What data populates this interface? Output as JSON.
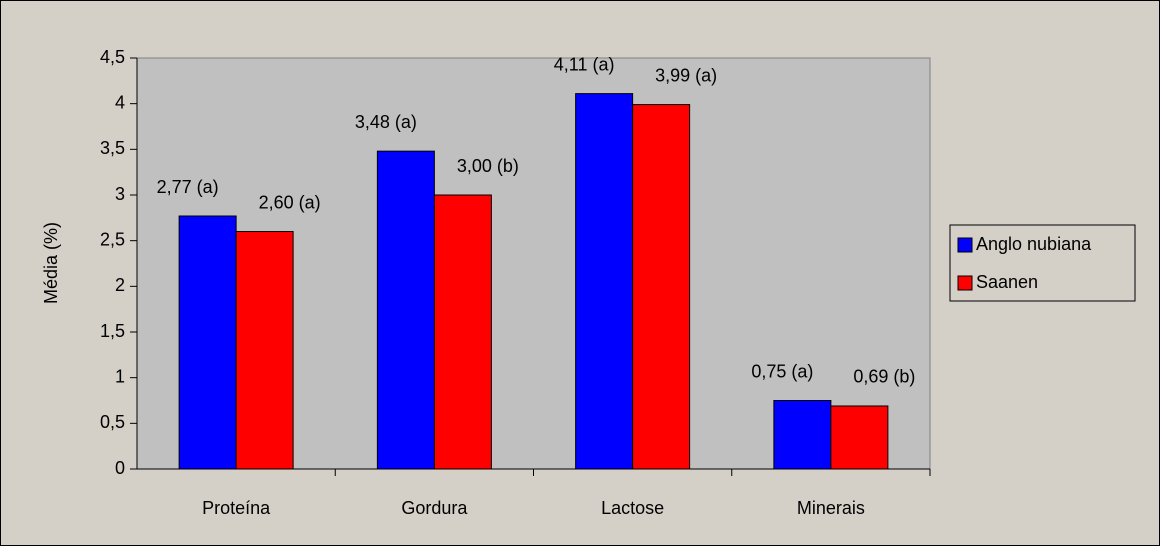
{
  "chart_data": {
    "type": "bar",
    "y_label": "Média (%)",
    "categories": [
      "Proteína",
      "Gordura",
      "Lactose",
      "Minerais"
    ],
    "series": [
      {
        "name": "Anglo nubiana",
        "color": "#0000ff",
        "values": [
          2.77,
          3.48,
          4.11,
          0.75
        ],
        "value_labels": [
          "2,77 (a)",
          "3,48 (a)",
          "4,11 (a)",
          "0,75 (a)"
        ]
      },
      {
        "name": "Saanen",
        "color": "#ff0000",
        "values": [
          2.6,
          3.0,
          3.99,
          0.69
        ],
        "value_labels": [
          "2,60 (a)",
          "3,00 (b)",
          "3,99 (a)",
          "0,69 (b)"
        ]
      }
    ],
    "ylim": [
      0,
      4.5
    ],
    "yticks": [
      0,
      {
        "value": 0.5,
        "label": "0,5"
      },
      1,
      {
        "value": 1.5,
        "label": "1,5"
      },
      2,
      {
        "value": 2.5,
        "label": "2,5"
      },
      3,
      {
        "value": 3.5,
        "label": "3,5"
      },
      4,
      {
        "value": 4.5,
        "label": "4,5"
      }
    ],
    "legend": "right"
  }
}
